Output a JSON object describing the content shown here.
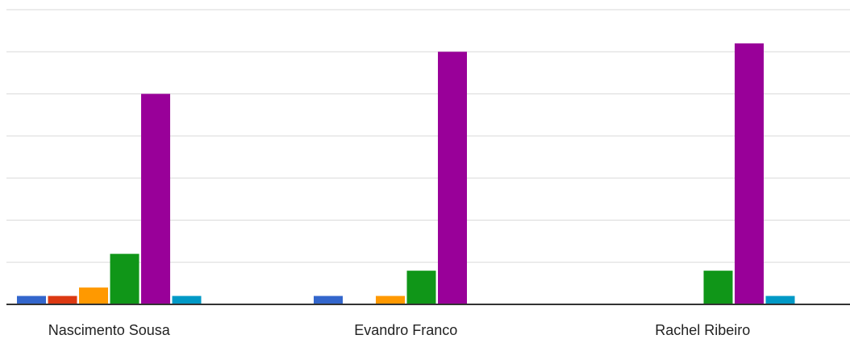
{
  "chart_data": {
    "type": "bar",
    "categories": [
      "Nascimento Sousa",
      "Evandro Franco",
      "Rachel Ribeiro"
    ],
    "series": [
      {
        "color": "#3366cc",
        "values": [
          1,
          1,
          0
        ]
      },
      {
        "color": "#dc3912",
        "values": [
          1,
          0,
          0
        ]
      },
      {
        "color": "#ff9900",
        "values": [
          2,
          1,
          0
        ]
      },
      {
        "color": "#109618",
        "values": [
          6,
          4,
          4
        ]
      },
      {
        "color": "#990099",
        "values": [
          25,
          30,
          31
        ]
      },
      {
        "color": "#0099c6",
        "values": [
          1,
          0,
          1
        ]
      }
    ],
    "ylim": [
      0,
      35
    ],
    "grid": true,
    "y_tick_step": 5,
    "title": "",
    "xlabel": "",
    "ylabel": ""
  }
}
